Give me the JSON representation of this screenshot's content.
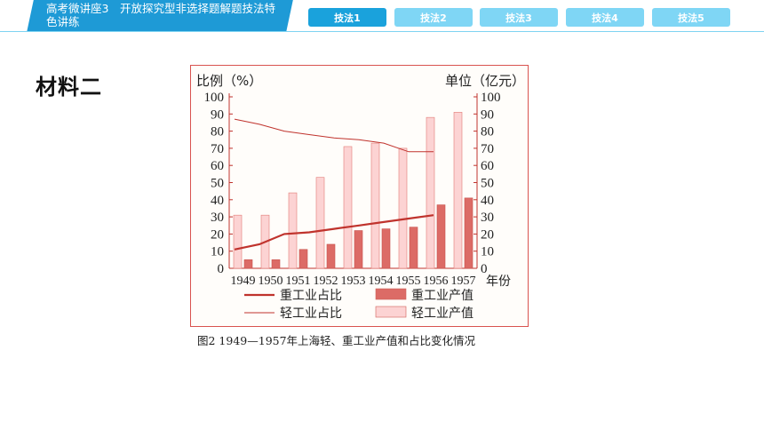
{
  "header": {
    "title": "高考微讲座3　开放探究型非选择题解题技法特色讲练"
  },
  "tabs": [
    {
      "label": "技法1",
      "active": true
    },
    {
      "label": "技法2",
      "active": false
    },
    {
      "label": "技法3",
      "active": false
    },
    {
      "label": "技法4",
      "active": false
    },
    {
      "label": "技法5",
      "active": false
    }
  ],
  "section_title": "材料二",
  "caption": "图2  1949—1957年上海轻、重工业产值和占比变化情况",
  "colors": {
    "header_blue": "#1e9ad6",
    "tab_active": "#1aa2dc",
    "tab_inactive": "#7fd6f5",
    "heavy_bar": "#dc6b66",
    "light_bar": "#fcd3d3",
    "line_red": "#c0332d"
  },
  "chart_data": {
    "type": "bar",
    "categories": [
      "1949",
      "1950",
      "1951",
      "1952",
      "1953",
      "1954",
      "1955",
      "1956",
      "1957"
    ],
    "xlabel": "年份",
    "ylabel_left": "比例（%）",
    "ylabel_right": "单位（亿元）",
    "ylim": [
      0,
      100
    ],
    "yticks": [
      0,
      10,
      20,
      30,
      40,
      50,
      60,
      70,
      80,
      90,
      100
    ],
    "grid": false,
    "legend_position": "bottom",
    "series": [
      {
        "name": "轻工业产值",
        "kind": "bar",
        "values": [
          31,
          31,
          44,
          53,
          71,
          73,
          70,
          88,
          91
        ]
      },
      {
        "name": "重工业产值",
        "kind": "bar",
        "values": [
          5,
          5,
          11,
          14,
          22,
          23,
          24,
          37,
          41
        ]
      },
      {
        "name": "重工业占比",
        "kind": "line",
        "values": [
          11,
          14,
          20,
          21,
          23,
          25,
          27,
          29,
          31
        ]
      },
      {
        "name": "轻工业占比",
        "kind": "line",
        "values": [
          87,
          84,
          80,
          78,
          76,
          75,
          73,
          68,
          68
        ]
      }
    ]
  }
}
